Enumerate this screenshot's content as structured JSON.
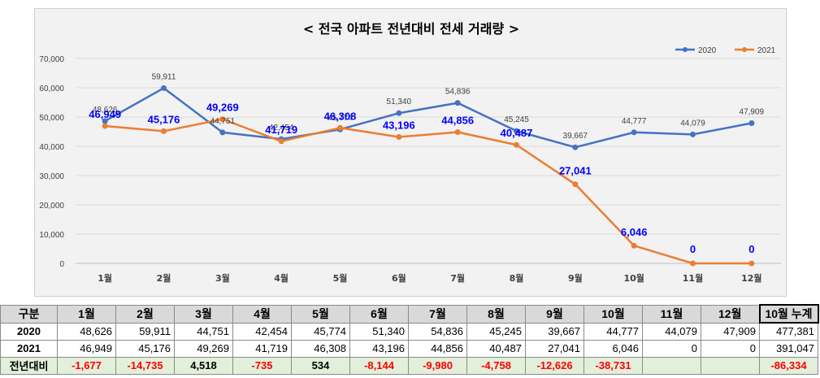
{
  "colors": {
    "series_2020": "#4472c4",
    "series_2021": "#ed7d31",
    "label_2021": "#0000ff",
    "negative": "#ff0000",
    "header_bg": "#d9d9d9",
    "diff_bg": "#e2efda"
  },
  "chart_data": {
    "type": "line",
    "title": "< 전국  아파트 전년대비 전세 거래량 >",
    "categories": [
      "1월",
      "2월",
      "3월",
      "4월",
      "5월",
      "6월",
      "7월",
      "8월",
      "9월",
      "10월",
      "11월",
      "12월"
    ],
    "yticks": [
      "0",
      "10,000",
      "20,000",
      "30,000",
      "40,000",
      "50,000",
      "60,000",
      "70,000"
    ],
    "ylim": [
      0,
      70000
    ],
    "grid": true,
    "legend": "top-right",
    "series": [
      {
        "name": "2020",
        "values": [
          48626,
          59911,
          44751,
          42454,
          45774,
          51340,
          54836,
          45245,
          39667,
          44777,
          44079,
          47909
        ],
        "labels": [
          "48,626",
          "59,911",
          "44,751",
          "42,454",
          "45,774",
          "51,340",
          "54,836",
          "45,245",
          "39,667",
          "44,777",
          "44,079",
          "47,909"
        ]
      },
      {
        "name": "2021",
        "values": [
          46949,
          45176,
          49269,
          41719,
          46308,
          43196,
          44856,
          40487,
          27041,
          6046,
          0,
          0
        ],
        "labels": [
          "46,949",
          "45,176",
          "49,269",
          "41,719",
          "46,308",
          "43,196",
          "44,856",
          "40,487",
          "27,041",
          "6,046",
          "0",
          "0"
        ]
      }
    ]
  },
  "table": {
    "headers": [
      "구분",
      "1월",
      "2월",
      "3월",
      "4월",
      "5월",
      "6월",
      "7월",
      "8월",
      "9월",
      "10월",
      "11월",
      "12월",
      "10월 누계"
    ],
    "rows": [
      {
        "label": "2020",
        "values": [
          "48,626",
          "59,911",
          "44,751",
          "42,454",
          "45,774",
          "51,340",
          "54,836",
          "45,245",
          "39,667",
          "44,777",
          "44,079",
          "47,909",
          "477,381"
        ]
      },
      {
        "label": "2021",
        "values": [
          "46,949",
          "45,176",
          "49,269",
          "41,719",
          "46,308",
          "43,196",
          "44,856",
          "40,487",
          "27,041",
          "6,046",
          "0",
          "0",
          "391,047"
        ]
      },
      {
        "label": "전년대비",
        "values": [
          "-1,677",
          "-14,735",
          "4,518",
          "-735",
          "534",
          "-8,144",
          "-9,980",
          "-4,758",
          "-12,626",
          "-38,731",
          "",
          "",
          "-86,334"
        ]
      }
    ]
  }
}
